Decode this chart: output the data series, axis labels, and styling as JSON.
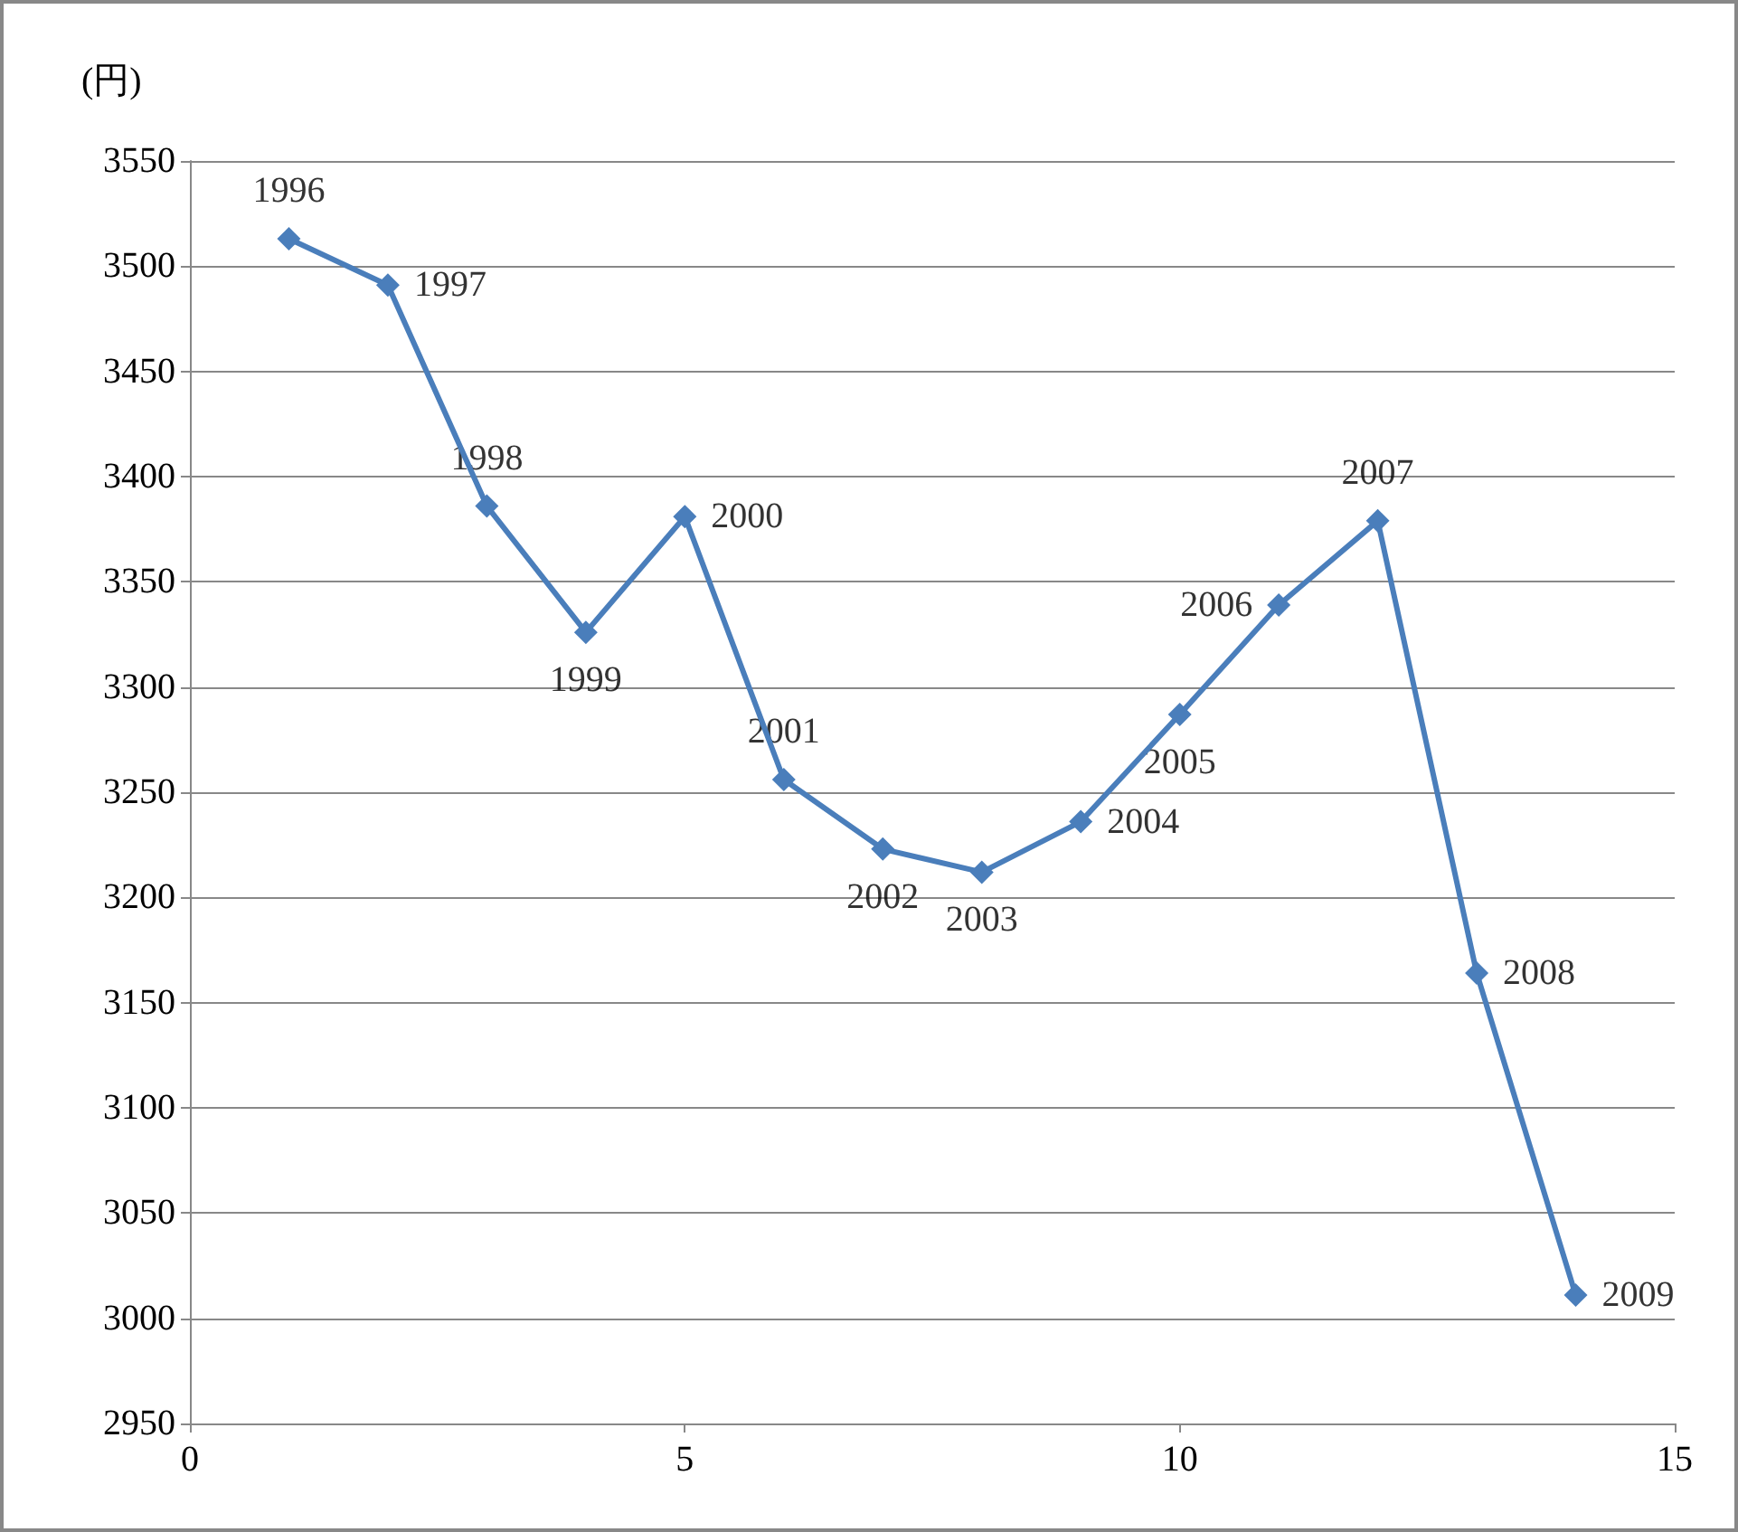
{
  "chart_data": {
    "type": "line",
    "ylabel": "(円)",
    "x": [
      1,
      2,
      3,
      4,
      5,
      6,
      7,
      8,
      9,
      10,
      11,
      12,
      13,
      14
    ],
    "series": [
      {
        "color": "#4a7ebb",
        "values": [
          3513,
          3491,
          3386,
          3326,
          3381,
          3256,
          3223,
          3212,
          3236,
          3287,
          3339,
          3379,
          3164,
          3011
        ]
      }
    ],
    "xlim": [
      0,
      15
    ],
    "xticks": [
      0,
      5,
      10,
      15
    ],
    "ylim": [
      2950,
      3550
    ],
    "yticks": [
      2950,
      3000,
      3050,
      3100,
      3150,
      3200,
      3250,
      3300,
      3350,
      3400,
      3450,
      3500,
      3550
    ],
    "grid": "y",
    "marker": "diamond",
    "line_style": "solid",
    "annotations": [
      {
        "text": "1996",
        "x": 1,
        "y": 3513
      },
      {
        "text": "1997",
        "x": 2,
        "y": 3491
      },
      {
        "text": "1998",
        "x": 3,
        "y": 3386
      },
      {
        "text": "1999",
        "x": 4,
        "y": 3326
      },
      {
        "text": "2000",
        "x": 5,
        "y": 3381
      },
      {
        "text": "2001",
        "x": 6,
        "y": 3256
      },
      {
        "text": "2002",
        "x": 7,
        "y": 3223
      },
      {
        "text": "2003",
        "x": 8,
        "y": 3212
      },
      {
        "text": "2004",
        "x": 9,
        "y": 3236
      },
      {
        "text": "2005",
        "x": 10,
        "y": 3287
      },
      {
        "text": "2006",
        "x": 11,
        "y": 3339
      },
      {
        "text": "2007",
        "x": 12,
        "y": 3379
      },
      {
        "text": "2008",
        "x": 13,
        "y": 3164
      },
      {
        "text": "2009",
        "x": 14,
        "y": 3011
      }
    ]
  }
}
